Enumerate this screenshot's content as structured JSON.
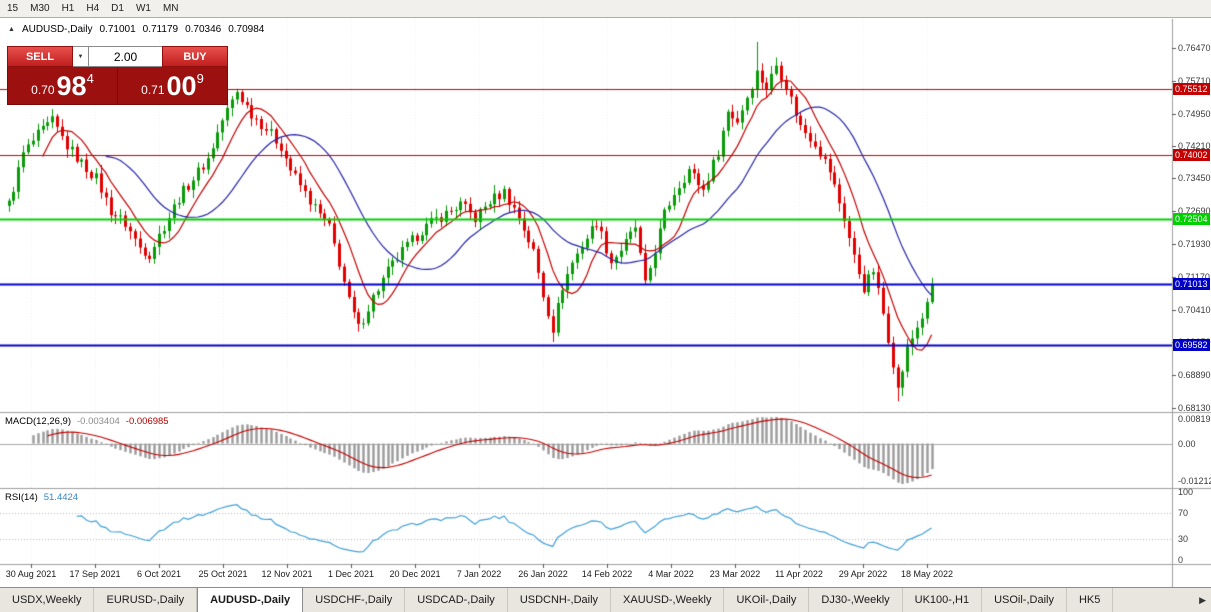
{
  "toolbar": {
    "timeframes": [
      "15",
      "M30",
      "H1",
      "H4",
      "D1",
      "W1",
      "MN"
    ]
  },
  "chart_header": {
    "collapse_icon": "▲",
    "symbol": "AUDUSD-,Daily",
    "open": "0.71001",
    "high": "0.71179",
    "low": "0.70346",
    "close": "0.70984"
  },
  "trade_panel": {
    "sell_label": "SELL",
    "buy_label": "BUY",
    "volume": "2.00",
    "spinner_icon": "▼",
    "sell_price_prefix": "0.70",
    "sell_price_big": "98",
    "sell_price_sup": "4",
    "buy_price_prefix": "0.71",
    "buy_price_big": "00",
    "buy_price_sup": "9"
  },
  "price_axis": {
    "ticks": [
      "0.76470",
      "0.75710",
      "0.74950",
      "0.74210",
      "0.73450",
      "0.72690",
      "0.71930",
      "0.71170",
      "0.70410",
      "0.69650",
      "0.68890",
      "0.68130"
    ],
    "hlines": [
      {
        "value": 0.75512,
        "label": "0.75512",
        "color": "#c40000",
        "width": 1
      },
      {
        "value": 0.74002,
        "label": "0.74002",
        "color": "#c40000",
        "width": 1
      },
      {
        "value": 0.72504,
        "label": "0.72504",
        "color": "#00d000",
        "width": 2
      },
      {
        "value": 0.71013,
        "label": "0.71013",
        "color": "#0000c8",
        "width": 2
      },
      {
        "value": 0.69582,
        "label": "0.69582",
        "color": "#0000c8",
        "width": 2
      }
    ]
  },
  "date_axis": {
    "labels": [
      "30 Aug 2021",
      "17 Sep 2021",
      "6 Oct 2021",
      "25 Oct 2021",
      "12 Nov 2021",
      "1 Dec 2021",
      "20 Dec 2021",
      "7 Jan 2022",
      "26 Jan 2022",
      "14 Feb 2022",
      "4 Mar 2022",
      "23 Mar 2022",
      "11 Apr 2022",
      "29 Apr 2022",
      "18 May 2022"
    ]
  },
  "indicators": {
    "macd": {
      "name": "MACD(12,26,9)",
      "main_value": "-0.003404",
      "signal_value": "-0.006985",
      "axis": [
        {
          "label": "0.008197",
          "value": 0.008197
        },
        {
          "label": "0.00",
          "value": 0
        },
        {
          "label": "-0.012121",
          "value": -0.012121
        }
      ]
    },
    "rsi": {
      "name": "RSI(14)",
      "value": "51.4424",
      "axis": [
        {
          "label": "100",
          "value": 100
        },
        {
          "label": "70",
          "value": 70
        },
        {
          "label": "30",
          "value": 30
        },
        {
          "label": "0",
          "value": 0
        }
      ],
      "levels": [
        70,
        30
      ]
    }
  },
  "tabs": {
    "items": [
      {
        "label": "USDX,Weekly",
        "active": false
      },
      {
        "label": "EURUSD-,Daily",
        "active": false
      },
      {
        "label": "AUDUSD-,Daily",
        "active": true
      },
      {
        "label": "USDCHF-,Daily",
        "active": false
      },
      {
        "label": "USDCAD-,Daily",
        "active": false
      },
      {
        "label": "USDCNH-,Daily",
        "active": false
      },
      {
        "label": "XAUUSD-,Weekly",
        "active": false
      },
      {
        "label": "UKOil-,Daily",
        "active": false
      },
      {
        "label": "DJ30-,Weekly",
        "active": false
      },
      {
        "label": "UK100-,H1",
        "active": false
      },
      {
        "label": "USOil-,Daily",
        "active": false
      },
      {
        "label": "HK5",
        "active": false
      }
    ],
    "scroll_right_icon": "▶"
  },
  "colors": {
    "up": "#0a9a0a",
    "down": "#e00000",
    "ma_fast": "#c40000",
    "ma_slow": "#2424a8",
    "macd_hist": "#9a9a9a",
    "macd_signal": "#c40000",
    "rsi_line": "#42a0d8",
    "axis_text": "#3a3a3a"
  },
  "chart_data": {
    "type": "candlestick",
    "symbol": "AUDUSD",
    "timeframe": "Daily",
    "title": "AUDUSD-,Daily",
    "current_ohlc": {
      "open": 0.71001,
      "high": 0.71179,
      "low": 0.70346,
      "close": 0.70984
    },
    "visible_bars": 191,
    "price_range": [
      0.6804,
      0.7714
    ],
    "y_ticks": [
      0.7647,
      0.7571,
      0.7495,
      0.7421,
      0.7345,
      0.7269,
      0.7193,
      0.7117,
      0.7041,
      0.6965,
      0.6889,
      0.6813
    ],
    "horizontal_lines": [
      0.75512,
      0.74002,
      0.72504,
      0.71013,
      0.69582
    ],
    "x_tick_labels": [
      "30 Aug 2021",
      "17 Sep 2021",
      "6 Oct 2021",
      "25 Oct 2021",
      "12 Nov 2021",
      "1 Dec 2021",
      "20 Dec 2021",
      "7 Jan 2022",
      "26 Jan 2022",
      "14 Feb 2022",
      "4 Mar 2022",
      "23 Mar 2022",
      "11 Apr 2022",
      "29 Apr 2022",
      "18 May 2022"
    ],
    "close_keypoints": [
      [
        0,
        0.7285
      ],
      [
        3,
        0.7402
      ],
      [
        6,
        0.7445
      ],
      [
        9,
        0.7477
      ],
      [
        12,
        0.742
      ],
      [
        15,
        0.738
      ],
      [
        18,
        0.7345
      ],
      [
        21,
        0.727
      ],
      [
        24,
        0.724
      ],
      [
        27,
        0.7185
      ],
      [
        29,
        0.717
      ],
      [
        32,
        0.7235
      ],
      [
        35,
        0.73
      ],
      [
        38,
        0.7345
      ],
      [
        41,
        0.739
      ],
      [
        44,
        0.748
      ],
      [
        47,
        0.7546
      ],
      [
        50,
        0.7495
      ],
      [
        53,
        0.746
      ],
      [
        56,
        0.742
      ],
      [
        58,
        0.7365
      ],
      [
        61,
        0.731
      ],
      [
        64,
        0.726
      ],
      [
        66,
        0.723
      ],
      [
        68,
        0.715
      ],
      [
        70,
        0.706
      ],
      [
        72,
        0.6998
      ],
      [
        75,
        0.707
      ],
      [
        78,
        0.713
      ],
      [
        81,
        0.7175
      ],
      [
        85,
        0.7225
      ],
      [
        88,
        0.725
      ],
      [
        91,
        0.727
      ],
      [
        93,
        0.7285
      ],
      [
        96,
        0.7252
      ],
      [
        99,
        0.7292
      ],
      [
        102,
        0.7314
      ],
      [
        105,
        0.7255
      ],
      [
        108,
        0.7175
      ],
      [
        110,
        0.7075
      ],
      [
        112,
        0.6998
      ],
      [
        114,
        0.7095
      ],
      [
        116,
        0.715
      ],
      [
        118,
        0.719
      ],
      [
        121,
        0.7245
      ],
      [
        124,
        0.7152
      ],
      [
        127,
        0.7195
      ],
      [
        129,
        0.7232
      ],
      [
        131,
        0.7096
      ],
      [
        133,
        0.718
      ],
      [
        135,
        0.7262
      ],
      [
        137,
        0.7312
      ],
      [
        140,
        0.7365
      ],
      [
        143,
        0.7318
      ],
      [
        146,
        0.7408
      ],
      [
        148,
        0.75
      ],
      [
        150,
        0.7478
      ],
      [
        152,
        0.7535
      ],
      [
        154,
        0.759
      ],
      [
        156,
        0.7555
      ],
      [
        158,
        0.7608
      ],
      [
        160,
        0.756
      ],
      [
        163,
        0.7465
      ],
      [
        166,
        0.7428
      ],
      [
        169,
        0.7362
      ],
      [
        172,
        0.7252
      ],
      [
        174,
        0.7162
      ],
      [
        176,
        0.7092
      ],
      [
        178,
        0.7132
      ],
      [
        180,
        0.7032
      ],
      [
        182,
        0.692
      ],
      [
        183,
        0.6855
      ],
      [
        185,
        0.6948
      ],
      [
        187,
        0.7002
      ],
      [
        189,
        0.7048
      ],
      [
        190,
        0.7098
      ]
    ],
    "wick_overrides": {
      "72": {
        "low": 0.699
      },
      "112": {
        "low": 0.6966
      },
      "154": {
        "high": 0.7661
      },
      "183": {
        "low": 0.6829
      }
    },
    "moving_averages": [
      {
        "period": 8,
        "color": "#c40000"
      },
      {
        "period": 21,
        "color": "#2424a8"
      }
    ],
    "indicators": {
      "macd": {
        "fast": 12,
        "slow": 26,
        "signal": 9,
        "current_main": -0.003404,
        "current_signal": -0.006985,
        "y_axis": [
          0.008197,
          0,
          -0.012121
        ]
      },
      "rsi": {
        "period": 14,
        "current": 51.4424,
        "levels": [
          70,
          30
        ],
        "range": [
          0,
          100
        ]
      }
    }
  }
}
